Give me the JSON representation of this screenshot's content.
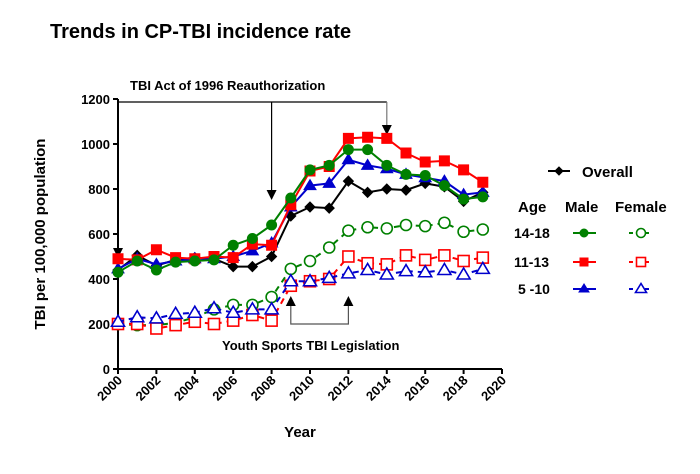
{
  "chart_data": {
    "type": "line",
    "title": "Trends in CP-TBI incidence rate",
    "xlabel": "Year",
    "ylabel": "TBI per 100,000 population",
    "xlim": [
      2000,
      2020
    ],
    "ylim": [
      0,
      1200
    ],
    "xticks": [
      2000,
      2002,
      2004,
      2006,
      2008,
      2010,
      2012,
      2014,
      2016,
      2018,
      2020
    ],
    "yticks": [
      0,
      200,
      400,
      600,
      800,
      1000,
      1200
    ],
    "grid": false,
    "x": [
      2000,
      2001,
      2002,
      2003,
      2004,
      2005,
      2006,
      2007,
      2008,
      2009,
      2010,
      2011,
      2012,
      2013,
      2014,
      2015,
      2016,
      2017,
      2018,
      2019
    ],
    "series": [
      {
        "name": "Overall",
        "color": "#000000",
        "marker": "diamond",
        "dashed": false,
        "filled": true,
        "values": [
          440,
          505,
          460,
          485,
          495,
          490,
          455,
          455,
          500,
          680,
          720,
          715,
          835,
          785,
          800,
          795,
          825,
          810,
          745,
          785
        ]
      },
      {
        "name": "14-18 Male",
        "color": "#008000",
        "marker": "circle",
        "dashed": false,
        "filled": true,
        "values": [
          430,
          480,
          440,
          475,
          480,
          485,
          550,
          580,
          640,
          760,
          885,
          905,
          975,
          975,
          905,
          865,
          860,
          815,
          755,
          765
        ]
      },
      {
        "name": "11-13 Male",
        "color": "#ff0000",
        "marker": "square",
        "dashed": false,
        "filled": true,
        "values": [
          490,
          485,
          530,
          495,
          490,
          500,
          495,
          555,
          550,
          730,
          880,
          900,
          1025,
          1030,
          1025,
          960,
          920,
          925,
          885,
          830
        ]
      },
      {
        "name": "5 -10 Male",
        "color": "#0000cc",
        "marker": "triangle",
        "dashed": false,
        "filled": true,
        "values": [
          445,
          490,
          465,
          480,
          490,
          490,
          500,
          525,
          560,
          720,
          815,
          825,
          930,
          905,
          890,
          865,
          850,
          835,
          775,
          785
        ]
      },
      {
        "name": "14-18 Female",
        "color": "#008000",
        "marker": "circle",
        "dashed": true,
        "filled": false,
        "values": [
          200,
          195,
          195,
          205,
          230,
          265,
          285,
          285,
          320,
          445,
          480,
          540,
          615,
          630,
          625,
          640,
          635,
          650,
          610,
          620
        ]
      },
      {
        "name": "11-13 Female",
        "color": "#ff0000",
        "marker": "square",
        "dashed": true,
        "filled": false,
        "values": [
          200,
          200,
          180,
          195,
          210,
          200,
          215,
          240,
          215,
          370,
          390,
          400,
          500,
          470,
          465,
          505,
          485,
          505,
          480,
          495
        ]
      },
      {
        "name": "5 -10 Female",
        "color": "#0000cc",
        "marker": "triangle",
        "dashed": true,
        "filled": false,
        "values": [
          210,
          230,
          225,
          245,
          250,
          270,
          250,
          265,
          265,
          390,
          390,
          405,
          425,
          440,
          420,
          435,
          430,
          440,
          420,
          445
        ]
      }
    ],
    "annotations": {
      "top": {
        "text": "TBI Act of 1996 Reauthorization",
        "years": [
          2000,
          2008,
          2014
        ]
      },
      "bottom": {
        "text": "Youth Sports TBI Legislation",
        "years": [
          2009,
          2012
        ]
      }
    },
    "legend": {
      "placement": "right",
      "overall": "Overall",
      "age_header": "Age",
      "male_header": "Male",
      "female_header": "Female",
      "rows": [
        {
          "age": "14-18",
          "color": "#008000",
          "marker": "circle"
        },
        {
          "age": "11-13",
          "color": "#ff0000",
          "marker": "square"
        },
        {
          "age": "5 -10",
          "color": "#0000cc",
          "marker": "triangle"
        }
      ]
    }
  }
}
